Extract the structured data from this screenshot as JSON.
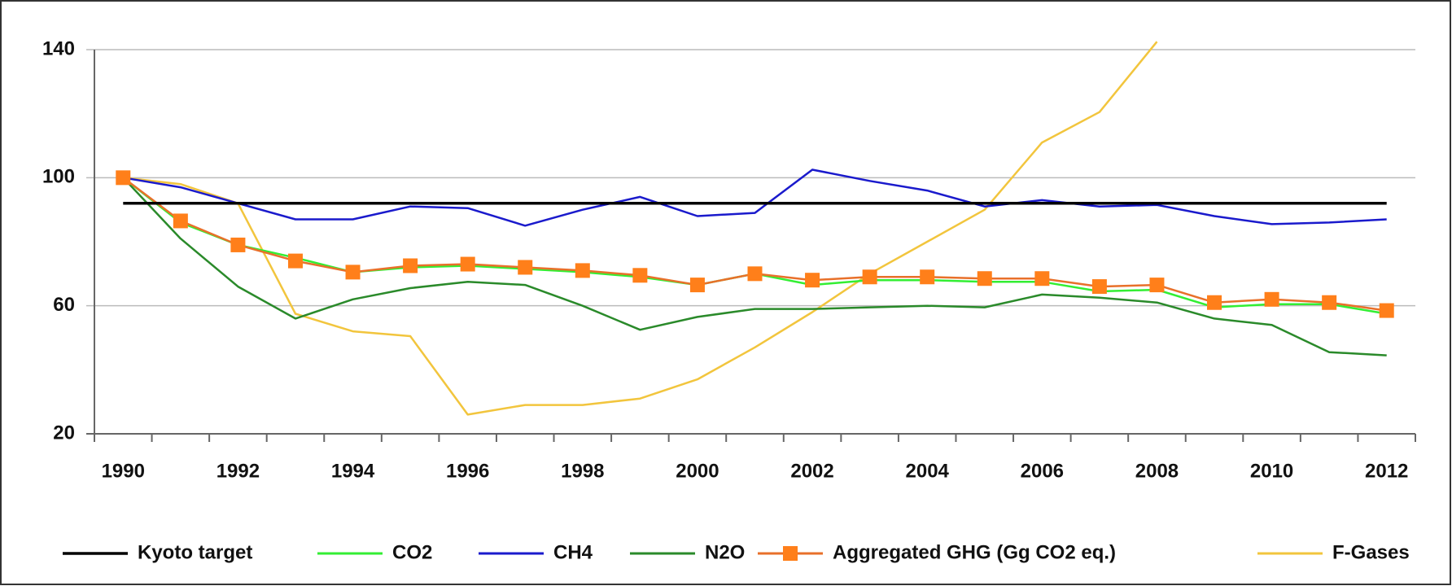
{
  "chart_data": {
    "type": "line",
    "categories": [
      "1990",
      null,
      "1992",
      null,
      "1994",
      null,
      "1996",
      null,
      "1998",
      null,
      "2000",
      null,
      "2002",
      null,
      "2004",
      null,
      "2006",
      null,
      "2008",
      null,
      "2010",
      null,
      "2012"
    ],
    "ylim": [
      20,
      140
    ],
    "yticks": [
      20,
      60,
      100,
      140
    ],
    "grid": true,
    "legend": "bottom",
    "series": [
      {
        "name": "Kyoto target",
        "color": "#000000",
        "values": [
          92,
          92,
          92,
          92,
          92,
          92,
          92,
          92,
          92,
          92,
          92,
          92,
          92,
          92,
          92,
          92,
          92,
          92,
          92,
          92,
          92,
          92,
          92
        ]
      },
      {
        "name": "CO2",
        "color": "#33ee33",
        "values": [
          100,
          86,
          79,
          75,
          70.5,
          72,
          72.5,
          71.5,
          70.5,
          69,
          66.5,
          70,
          66.5,
          68,
          68,
          67.5,
          67.5,
          64.5,
          65,
          59.5,
          60.5,
          60.5,
          57.5
        ]
      },
      {
        "name": "CH4",
        "color": "#1a1acc",
        "values": [
          100,
          97,
          92,
          87,
          87,
          91,
          90.5,
          85,
          90,
          94,
          88,
          89,
          102.5,
          99,
          96,
          91,
          93,
          91,
          91.5,
          88,
          85.5,
          86,
          87
        ]
      },
      {
        "name": "N2O",
        "color": "#2a8a2a",
        "values": [
          100,
          81,
          66,
          56,
          62,
          65.5,
          67.5,
          66.5,
          60,
          52.5,
          56.5,
          59,
          59,
          59.5,
          60,
          59.5,
          63.5,
          62.5,
          61,
          56,
          54,
          45.5,
          44.5
        ]
      },
      {
        "name": "Aggregated GHG (Gg CO2 eq.)",
        "color": "#e8702a",
        "marker": "square",
        "values": [
          100,
          86.5,
          79,
          74,
          70.5,
          72.5,
          73,
          72,
          71,
          69.5,
          66.5,
          70,
          68,
          69,
          69,
          68.5,
          68.5,
          66,
          66.5,
          61,
          62,
          61,
          58.5
        ]
      },
      {
        "name": "F-Gases",
        "color": "#f2c53d",
        "values": [
          100,
          98,
          92,
          57.5,
          52,
          50.5,
          26,
          29,
          29,
          31,
          37,
          47,
          58,
          70,
          80,
          90,
          111,
          120.5,
          142.5,
          null,
          null,
          null,
          null
        ]
      }
    ]
  }
}
